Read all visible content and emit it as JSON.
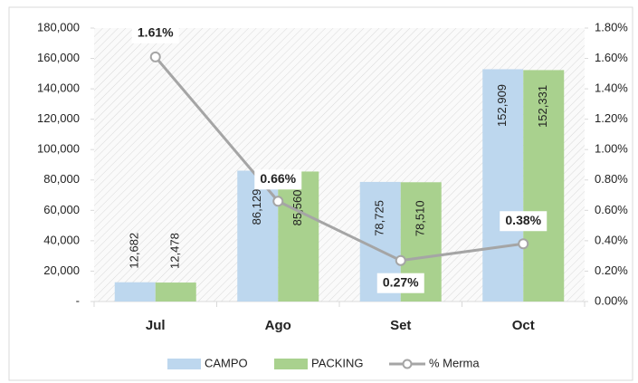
{
  "chart_data": {
    "type": "bar_line",
    "categories": [
      "Jul",
      "Ago",
      "Set",
      "Oct"
    ],
    "series": [
      {
        "name": "CAMPO",
        "color": "#bdd7ee",
        "type": "bar",
        "values": [
          12682,
          86129,
          78725,
          152909
        ],
        "value_labels": [
          "12,682",
          "86,129",
          "78,725",
          "152,909"
        ]
      },
      {
        "name": "PACKING",
        "color": "#a9d18e",
        "type": "bar",
        "values": [
          12478,
          85560,
          78510,
          152331
        ],
        "value_labels": [
          "12,478",
          "85,560",
          "78,510",
          "152,331"
        ]
      },
      {
        "name": "% Merma",
        "color": "#a5a5a5",
        "type": "line",
        "axis": "y2",
        "values": [
          1.61,
          0.66,
          0.27,
          0.38
        ],
        "value_labels": [
          "1.61%",
          "0.66%",
          "0.27%",
          "0.38%"
        ]
      }
    ],
    "ylim": [
      0,
      180000
    ],
    "yticks": [
      {
        "value": 0,
        "label": "-"
      },
      {
        "value": 20000,
        "label": "20,000"
      },
      {
        "value": 40000,
        "label": "40,000"
      },
      {
        "value": 60000,
        "label": "60,000"
      },
      {
        "value": 80000,
        "label": "80,000"
      },
      {
        "value": 100000,
        "label": "100,000"
      },
      {
        "value": 120000,
        "label": "120,000"
      },
      {
        "value": 140000,
        "label": "140,000"
      },
      {
        "value": 160000,
        "label": "160,000"
      },
      {
        "value": 180000,
        "label": "180,000"
      }
    ],
    "y2lim": [
      0,
      1.8
    ],
    "y2ticks": [
      {
        "value": 0,
        "label": "0.00%"
      },
      {
        "value": 0.2,
        "label": "0.20%"
      },
      {
        "value": 0.4,
        "label": "0.40%"
      },
      {
        "value": 0.6,
        "label": "0.60%"
      },
      {
        "value": 0.8,
        "label": "0.80%"
      },
      {
        "value": 1.0,
        "label": "1.00%"
      },
      {
        "value": 1.2,
        "label": "1.20%"
      },
      {
        "value": 1.4,
        "label": "1.40%"
      },
      {
        "value": 1.6,
        "label": "1.60%"
      },
      {
        "value": 1.8,
        "label": "1.80%"
      }
    ],
    "legend": "bottom"
  }
}
